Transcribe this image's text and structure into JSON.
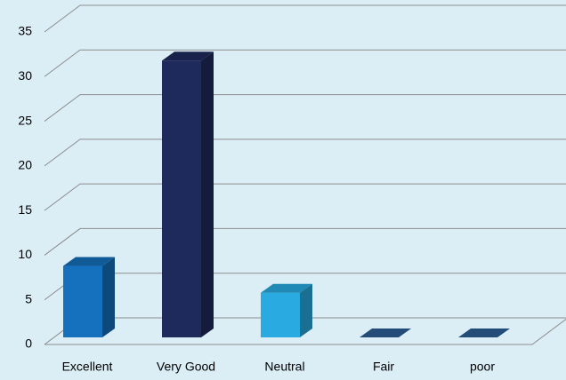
{
  "chart_data": {
    "type": "bar3d",
    "categories": [
      "Excellent",
      "Very Good",
      "Neutral",
      "Fair",
      "poor"
    ],
    "values": [
      8,
      31,
      5,
      0,
      0
    ],
    "colors": [
      "#1570be",
      "#1f2a5c",
      "#29abe2",
      "#2d5f96",
      "#2d5f96"
    ],
    "ylim": [
      0,
      35
    ],
    "yticks": [
      0,
      5,
      10,
      15,
      20,
      25,
      30,
      35
    ],
    "grid": true
  }
}
